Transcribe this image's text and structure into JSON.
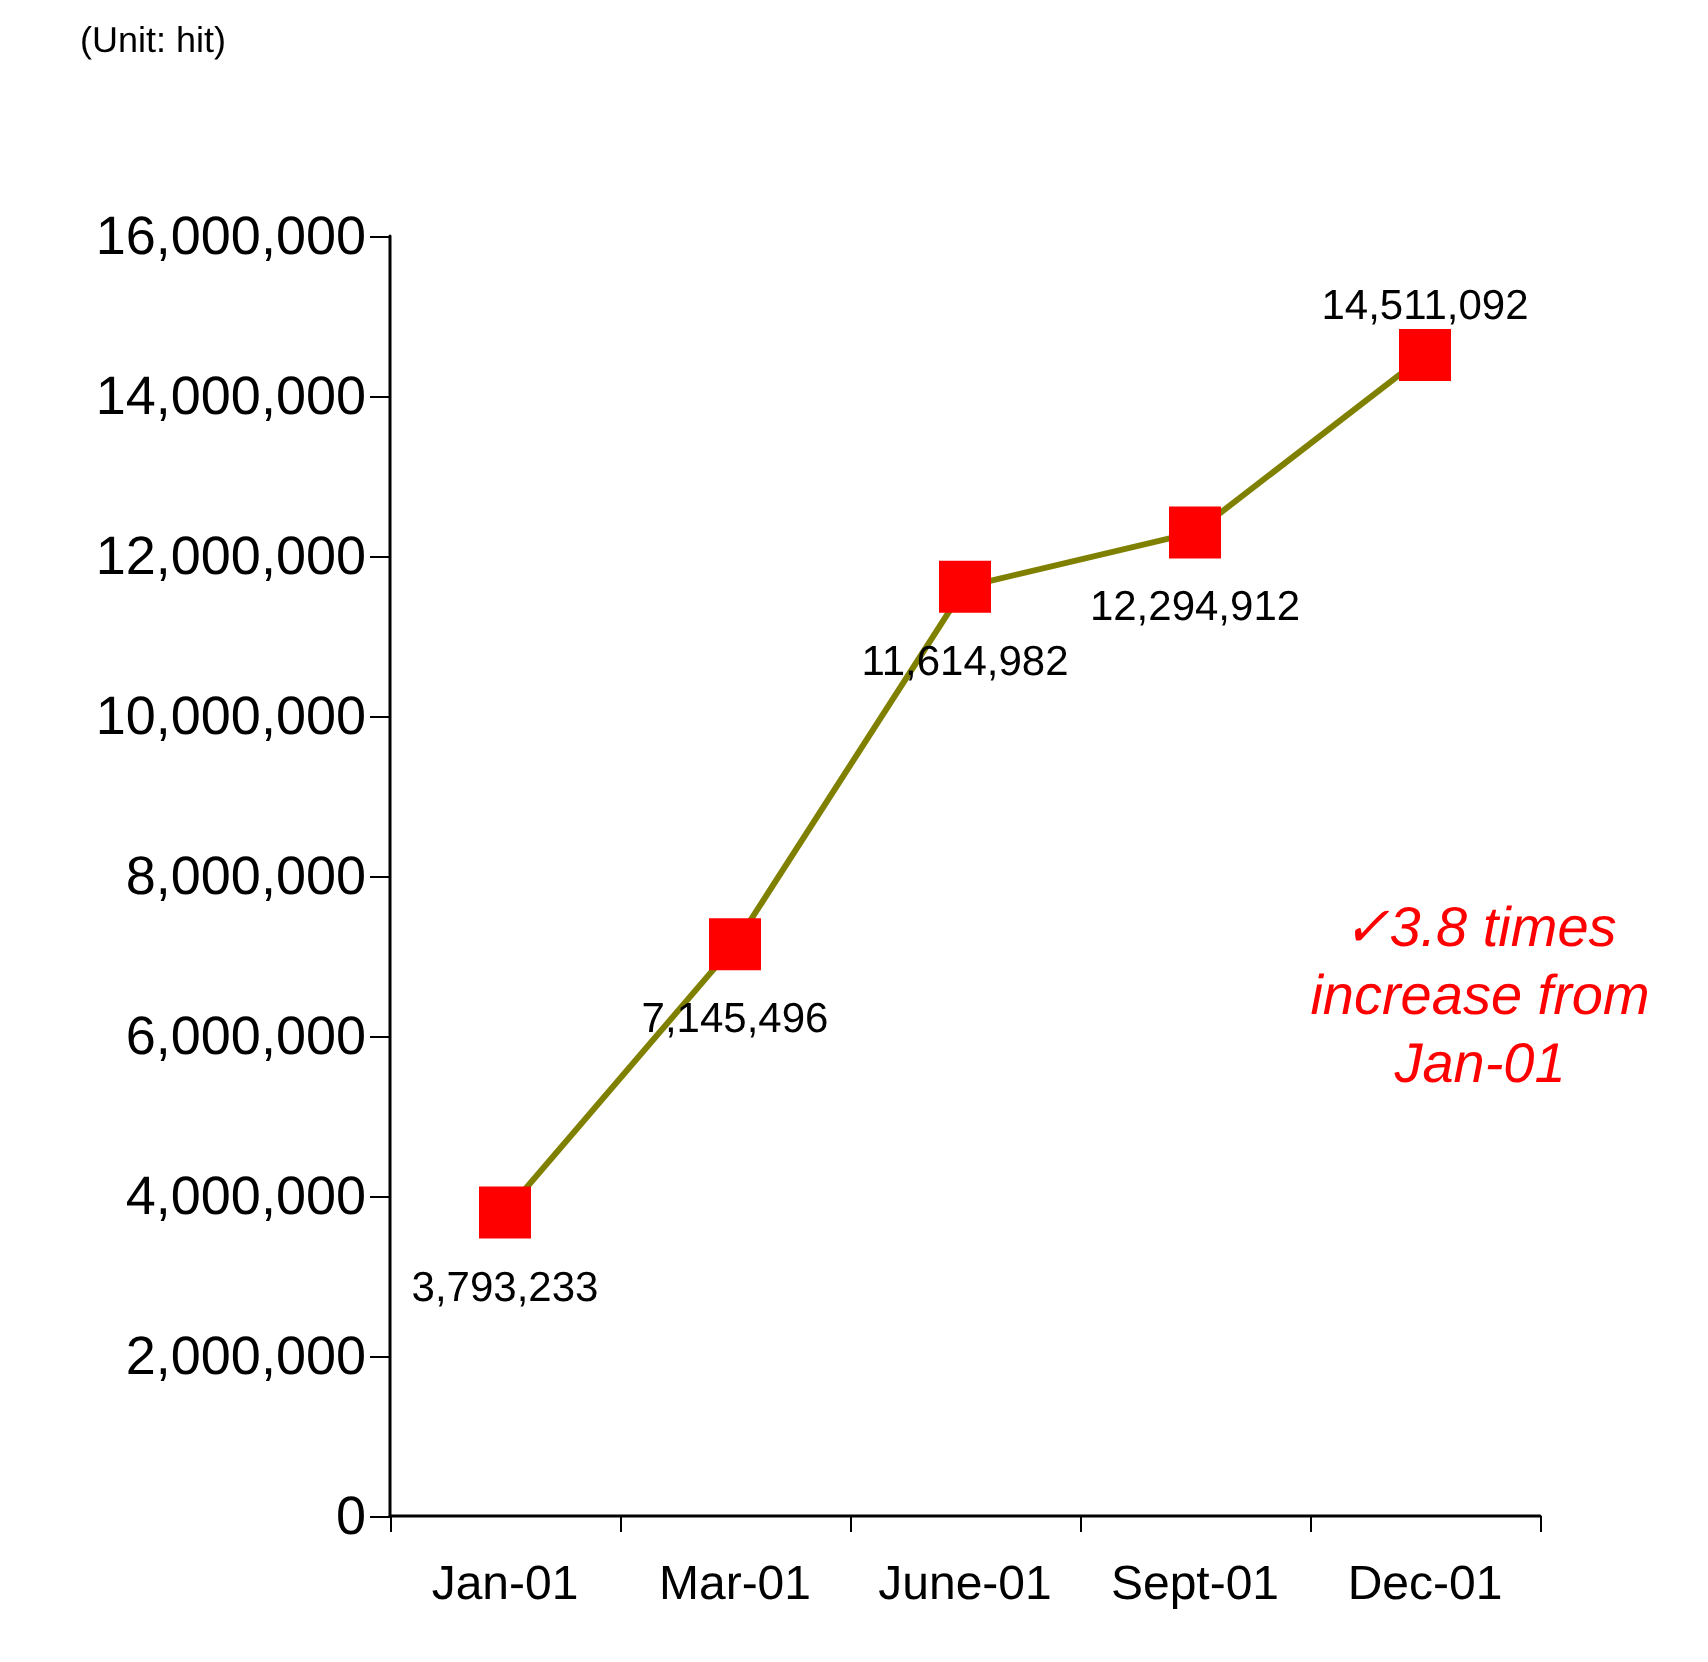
{
  "chart_data": {
    "type": "line",
    "ylabel": "(Unit: hit)",
    "categories": [
      "Jan-01",
      "Mar-01",
      "June-01",
      "Sept-01",
      "Dec-01"
    ],
    "series": [
      {
        "color": "#808000",
        "colors": [
          "#ff0000",
          "#ff0000",
          "#ff0000",
          "#ff0000",
          "#ff0000"
        ],
        "values": [
          3793233,
          7145496,
          11614982,
          12294912,
          14511092
        ],
        "value_labels": [
          "3,793,233",
          "7,145,496",
          "11,614,982",
          "12,294,912",
          "14,511,092"
        ]
      }
    ],
    "marker": "square",
    "grid": false,
    "ylim": [
      0,
      16000000
    ],
    "yticks": [
      0,
      {
        "value": 2000000,
        "label": "2,000,000"
      },
      {
        "value": 4000000,
        "label": "4,000,000"
      },
      {
        "value": 6000000,
        "label": "6,000,000"
      },
      {
        "value": 8000000,
        "label": "8,000,000"
      },
      {
        "value": 10000000,
        "label": "10,000,000"
      },
      {
        "value": 12000000,
        "label": "12,000,000"
      },
      {
        "value": 14000000,
        "label": "14,000,000"
      },
      {
        "value": 16000000,
        "label": "16,000,000"
      }
    ],
    "annotations": [
      "✓3.8 times increase from Jan-01"
    ]
  }
}
